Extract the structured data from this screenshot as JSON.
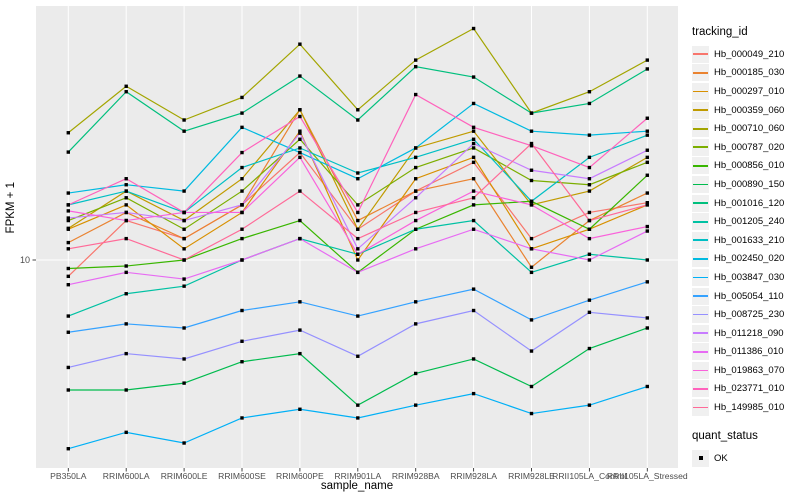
{
  "figure": {
    "background": "#FFFFFF",
    "panel_background": "#EBEBEB",
    "grid_color": "#FFFFFF",
    "tick_color": "#333333",
    "tick_label_color": "#4D4D4D",
    "point_color": "#000000"
  },
  "chart_data": {
    "type": "line",
    "title": "",
    "xlabel": "sample_name",
    "ylabel": "FPKM + 1",
    "y_scale": "log10",
    "y_ticks": [
      10
    ],
    "ylim": [
      1.7,
      87
    ],
    "grid": "major-only",
    "legend_position": "right",
    "point_shape": "filled-square",
    "categories": [
      "PB350LA",
      "RRIM600LA",
      "RRIM600LE",
      "RRIM600SE",
      "RRIM600PE",
      "RRIM901LA",
      "RRIM928BA",
      "RRIM928LA",
      "RRIM928LE",
      "RRII105LA_Control",
      "RRII105LA_Stressed"
    ],
    "series": [
      {
        "name": "Hb_000049_210",
        "color": "#F8766D",
        "values": [
          8.7,
          14,
          12,
          16,
          25,
          13,
          18,
          23,
          12,
          15,
          16.3
        ]
      },
      {
        "name": "Hb_000185_030",
        "color": "#EA8331",
        "values": [
          11.6,
          15,
          12,
          16,
          36,
          14,
          18,
          20,
          9.4,
          14,
          17.7
        ]
      },
      {
        "name": "Hb_000297_010",
        "color": "#D89000",
        "values": [
          13,
          16,
          11,
          15,
          30,
          10,
          20,
          24,
          11,
          13,
          16
        ]
      },
      {
        "name": "Hb_000359_060",
        "color": "#C09B00",
        "values": [
          13.1,
          18,
          14,
          20,
          36,
          13,
          26,
          30,
          16,
          18,
          24
        ]
      },
      {
        "name": "Hb_000710_060",
        "color": "#A3A500",
        "values": [
          29.6,
          44,
          33,
          40,
          63,
          36,
          55,
          72,
          35,
          42,
          55
        ]
      },
      {
        "name": "Hb_000787_020",
        "color": "#7CAE00",
        "values": [
          14,
          17,
          13,
          18,
          28,
          16,
          22,
          26,
          19.7,
          19,
          23
        ]
      },
      {
        "name": "Hb_000856_010",
        "color": "#39B600",
        "values": [
          9.3,
          9.5,
          10,
          12,
          14,
          9,
          13,
          16,
          16.5,
          13,
          20.6
        ]
      },
      {
        "name": "Hb_000890_150",
        "color": "#00BB4E",
        "values": [
          3.3,
          3.3,
          3.5,
          4.2,
          4.5,
          2.9,
          3.8,
          4.3,
          3.4,
          4.7,
          5.6
        ]
      },
      {
        "name": "Hb_001016_120",
        "color": "#00BF7D",
        "values": [
          25.1,
          42,
          30,
          35,
          48,
          33,
          52,
          47.6,
          35,
          38,
          51
        ]
      },
      {
        "name": "Hb_001205_240",
        "color": "#00C1A3",
        "values": [
          6.2,
          7.5,
          8,
          10,
          12,
          10.5,
          13,
          14,
          9,
          10.5,
          10
        ]
      },
      {
        "name": "Hb_001633_210",
        "color": "#00BFC4",
        "values": [
          16,
          18,
          15,
          22,
          26,
          21,
          24,
          28,
          16.5,
          24,
          29
        ]
      },
      {
        "name": "Hb_002450_020",
        "color": "#00BAE0",
        "values": [
          17.7,
          19,
          18,
          31,
          25,
          20,
          26,
          38,
          30,
          29,
          30
        ]
      },
      {
        "name": "Hb_003847_030",
        "color": "#00B0F6",
        "values": [
          2,
          2.3,
          2.1,
          2.6,
          2.8,
          2.6,
          2.9,
          3.2,
          2.7,
          2.9,
          3.4
        ]
      },
      {
        "name": "Hb_005054_110",
        "color": "#35A2FF",
        "values": [
          5.4,
          5.8,
          5.6,
          6.5,
          7,
          6.2,
          7,
          7.8,
          6,
          7.1,
          8.3
        ]
      },
      {
        "name": "Hb_008725_230",
        "color": "#9590FF",
        "values": [
          4,
          4.5,
          4.3,
          5,
          5.5,
          4.4,
          5.8,
          6.5,
          4.6,
          6.4,
          6.1
        ]
      },
      {
        "name": "Hb_011218_090",
        "color": "#C77CFF",
        "values": [
          14.3,
          15,
          14,
          16,
          29.5,
          11,
          17,
          27,
          21.5,
          20,
          25.5
        ]
      },
      {
        "name": "Hb_011386_010",
        "color": "#E76BF3",
        "values": [
          8.1,
          9,
          8.5,
          10,
          12,
          9,
          11,
          13,
          11,
          10,
          12.8
        ]
      },
      {
        "name": "Hb_019863_070",
        "color": "#FA62DB",
        "values": [
          15.2,
          14,
          15,
          15,
          24,
          10.5,
          14,
          18,
          16,
          12,
          13.3
        ]
      },
      {
        "name": "Hb_023771_010",
        "color": "#FF62BC",
        "values": [
          16,
          20,
          15,
          25,
          34,
          15,
          41,
          31,
          26.5,
          22,
          33.5
        ]
      },
      {
        "name": "Hb_149985_010",
        "color": "#FF6A98",
        "values": [
          11,
          12,
          10,
          13,
          18,
          12,
          15,
          17,
          27,
          14,
          16
        ]
      }
    ]
  },
  "legend": {
    "color_title": "tracking_id",
    "shape_title": "quant_status",
    "shape_items": [
      {
        "label": "OK"
      }
    ]
  }
}
